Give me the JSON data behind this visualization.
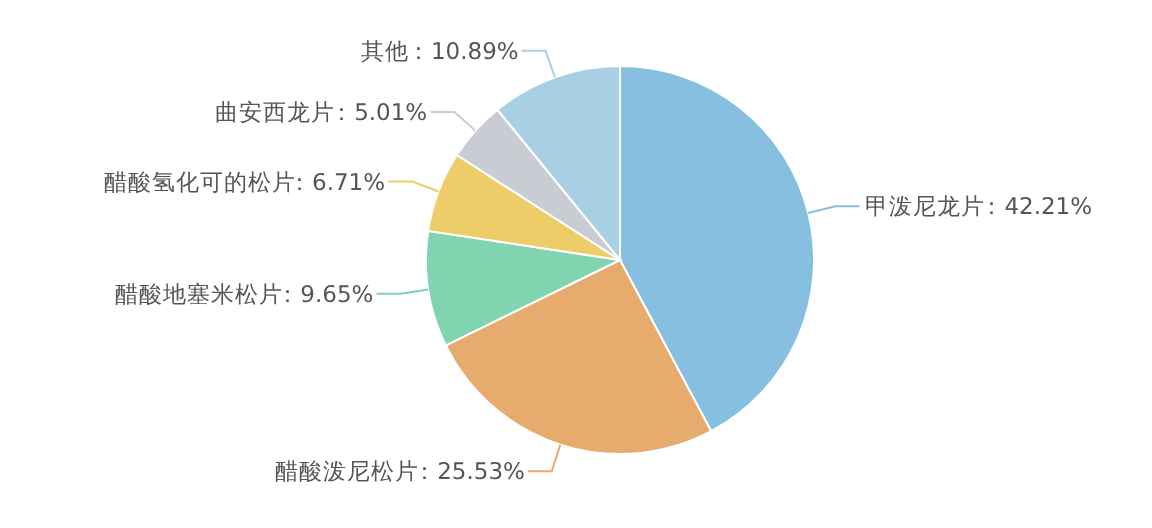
{
  "chart_data": {
    "type": "pie",
    "categories": [
      "甲泼尼龙片",
      "醋酸泼尼松片",
      "醋酸地塞米松片",
      "醋酸氢化可的松片",
      "曲安西龙片",
      "其他"
    ],
    "values": [
      42.21,
      25.53,
      9.65,
      6.71,
      5.01,
      10.89
    ],
    "colors": [
      "#86bfdf",
      "#e8ab6e",
      "#80d4b0",
      "#edcd6a",
      "#c9ccd3",
      "#a8cfe4"
    ],
    "value_labels": [
      "：42.21%",
      "：25.53%",
      "：9.65%",
      "：6.71%",
      "：5.01%",
      "：10.89%"
    ]
  }
}
